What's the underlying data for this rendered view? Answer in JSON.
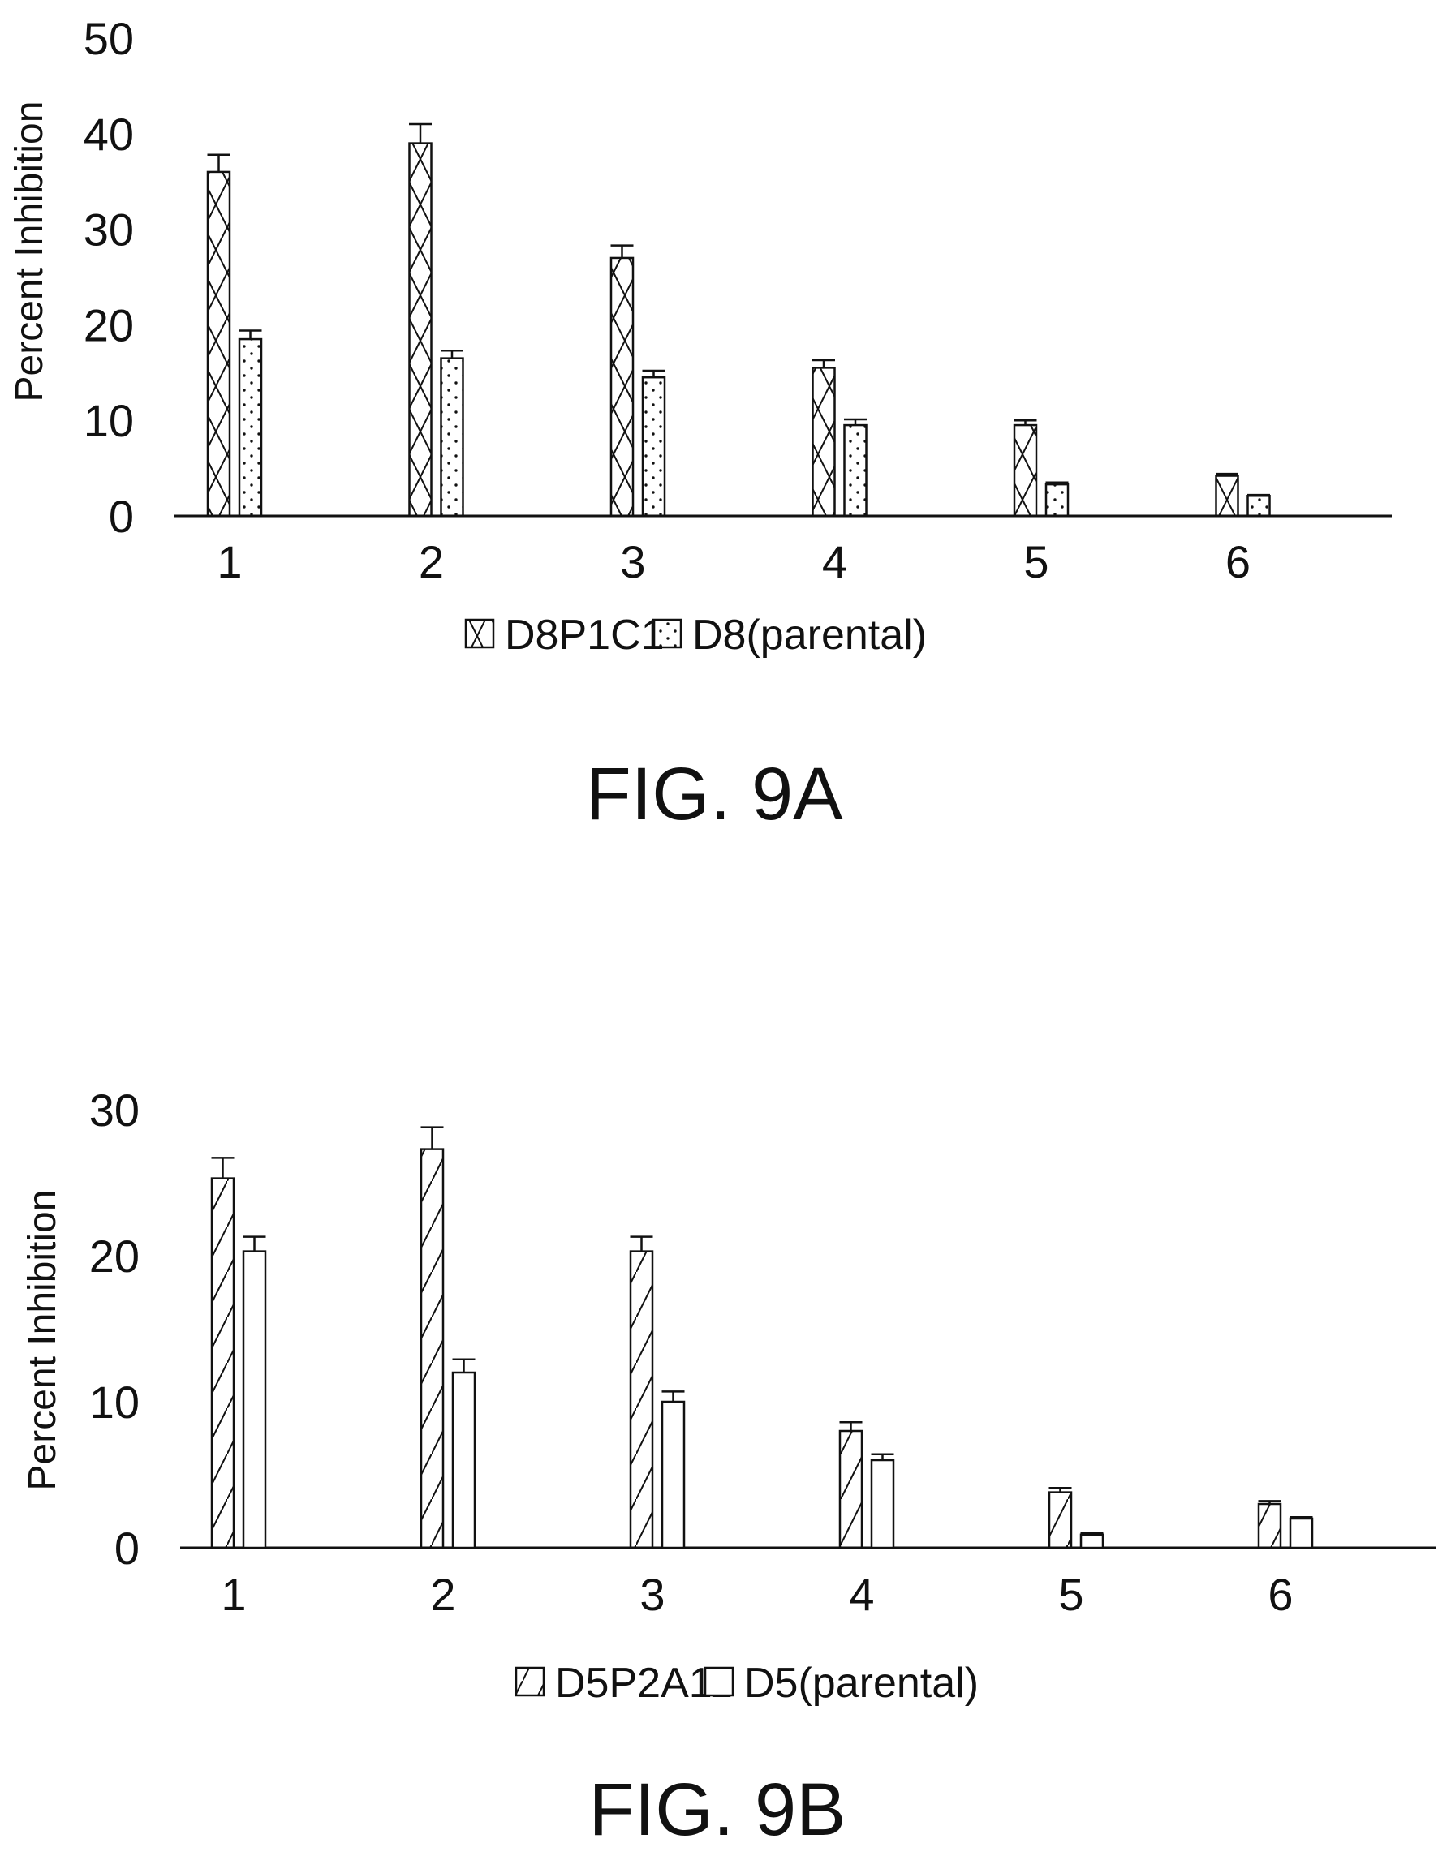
{
  "chart_data": [
    {
      "type": "bar",
      "figure_label": "FIG. 9A",
      "title": "",
      "xlabel": "",
      "ylabel": "Percent Inhibition",
      "ylim": [
        0,
        50
      ],
      "yticks": [
        "0",
        "10",
        "20",
        "30",
        "40",
        "50"
      ],
      "categories": [
        "1",
        "2",
        "3",
        "4",
        "5",
        "6"
      ],
      "legend_position": "bottom-center",
      "grid": false,
      "series": [
        {
          "name": "D8P1C1",
          "pattern": "crosshatch",
          "values": [
            36,
            39,
            27,
            15.5,
            9.5,
            4.2
          ],
          "errors": [
            1.8,
            2.0,
            1.3,
            0.8,
            0.5,
            0.2
          ]
        },
        {
          "name": "D8(parental)",
          "pattern": "dots",
          "values": [
            18.5,
            16.5,
            14.5,
            9.5,
            3.3,
            2.1
          ],
          "errors": [
            0.9,
            0.8,
            0.7,
            0.6,
            0.2,
            0.1
          ]
        }
      ]
    },
    {
      "type": "bar",
      "figure_label": "FIG. 9B",
      "title": "",
      "xlabel": "",
      "ylabel": "Percent Inhibition",
      "ylim": [
        0,
        30
      ],
      "yticks": [
        "0",
        "10",
        "20",
        "30"
      ],
      "categories": [
        "1",
        "2",
        "3",
        "4",
        "5",
        "6"
      ],
      "legend_position": "bottom-center",
      "grid": false,
      "series": [
        {
          "name": "D5P2A11",
          "pattern": "diagonal",
          "values": [
            25.3,
            27.3,
            20.3,
            8,
            3.8,
            3
          ],
          "errors": [
            1.4,
            1.5,
            1.0,
            0.6,
            0.3,
            0.2
          ]
        },
        {
          "name": "D5(parental)",
          "pattern": "blank",
          "values": [
            20.3,
            12,
            10,
            6,
            0.9,
            2
          ],
          "errors": [
            1.0,
            0.9,
            0.7,
            0.4,
            0.1,
            0.1
          ]
        }
      ]
    }
  ]
}
